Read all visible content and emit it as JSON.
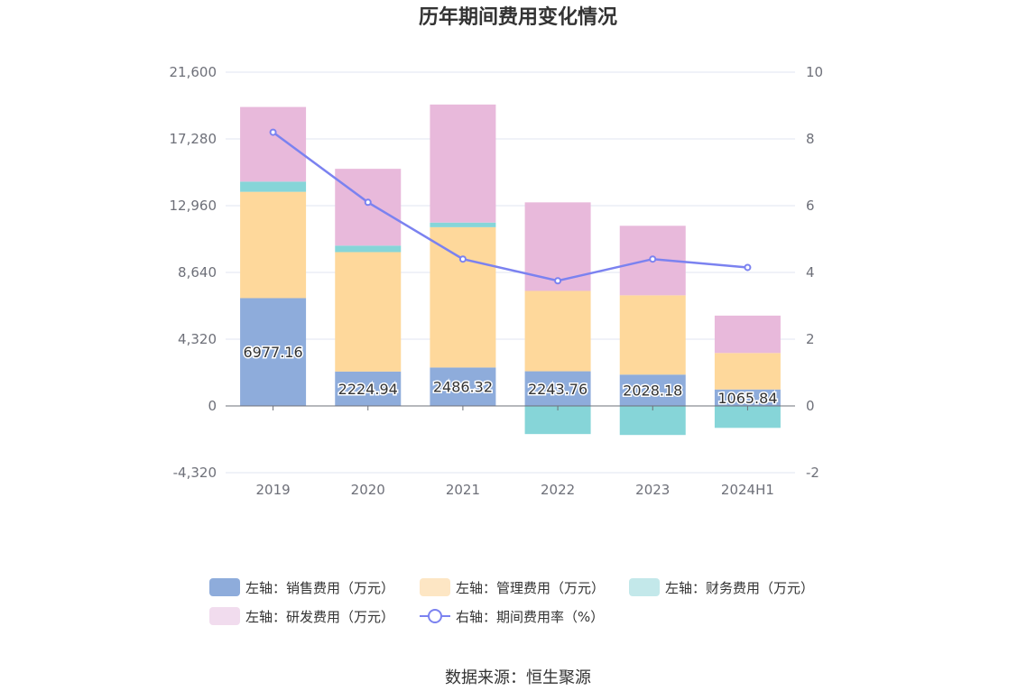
{
  "title": "历年期间费用变化情况",
  "source": "数据来源：恒生聚源",
  "legend": [
    {
      "label": "左轴：销售费用（万元）",
      "color": "#8eacdb",
      "type": "rect"
    },
    {
      "label": "左轴：管理费用（万元）",
      "color": "#fde6c4",
      "type": "rect"
    },
    {
      "label": "左轴：财务费用（万元）",
      "color": "#c3e8ea",
      "type": "rect"
    },
    {
      "label": "左轴：研发费用（万元）",
      "color": "#f1dcee",
      "type": "rect"
    },
    {
      "label": "右轴：期间费用率（%）",
      "color": "#7b82f0",
      "type": "line"
    }
  ],
  "chart_data": {
    "type": "bar",
    "stacked": true,
    "categories": [
      "2019",
      "2020",
      "2021",
      "2022",
      "2023",
      "2024H1"
    ],
    "y_left": {
      "ticks": [
        "21,600",
        "17,280",
        "12,960",
        "8,640",
        "4,320",
        "0",
        "-4,320"
      ],
      "lim": [
        -4320,
        21600
      ]
    },
    "y_right": {
      "ticks": [
        "10",
        "8",
        "6",
        "4",
        "2",
        "0",
        "-2"
      ],
      "lim": [
        -2,
        10
      ]
    },
    "series": [
      {
        "name": "左轴：销售费用（万元）",
        "axis": "left",
        "color": "#8eacdb",
        "values": [
          6977.16,
          2224.94,
          2486.32,
          2243.76,
          2028.18,
          1065.84
        ],
        "labels": [
          "6977.16",
          "2224.94",
          "2486.32",
          "2243.76",
          "2028.18",
          "1065.84"
        ]
      },
      {
        "name": "左轴：管理费用（万元）",
        "axis": "left",
        "color": "#fed89b",
        "values": [
          6880,
          7730,
          9080,
          5200,
          5130,
          2360
        ]
      },
      {
        "name": "左轴：财务费用（万元）",
        "axis": "left",
        "color": "#86d5d8",
        "values": [
          660,
          420,
          300,
          -1820,
          -1880,
          -1420
        ]
      },
      {
        "name": "左轴：研发费用（万元）",
        "axis": "left",
        "color": "#e8b9db",
        "values": [
          4830,
          4970,
          7640,
          5730,
          4500,
          2420
        ]
      },
      {
        "name": "右轴：期间费用率（%）",
        "axis": "right",
        "type": "line",
        "color": "#7b82f0",
        "values": [
          8.2,
          6.1,
          4.4,
          3.75,
          4.4,
          4.15
        ]
      }
    ]
  }
}
